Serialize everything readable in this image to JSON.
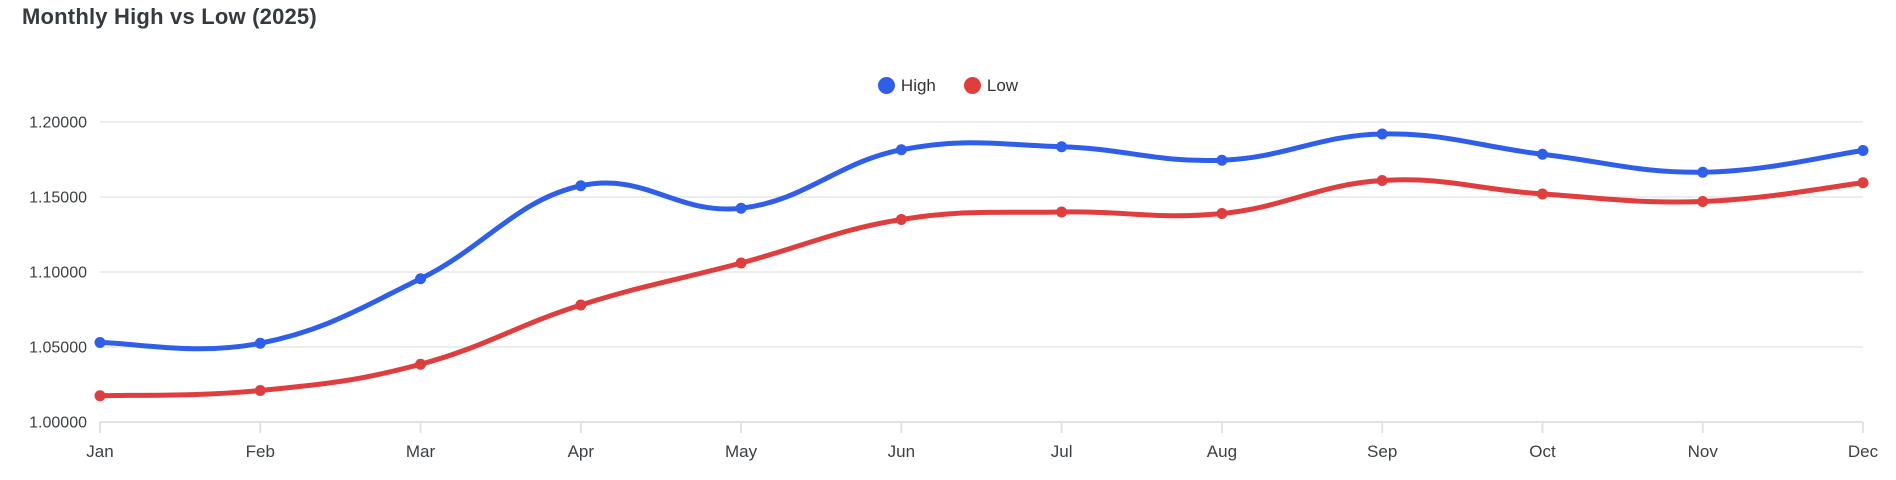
{
  "page": {
    "title": "Monthly High vs Low (2025)"
  },
  "chart_data": {
    "type": "line",
    "title": "Monthly High vs Low (2025)",
    "x": [
      "Jan",
      "Feb",
      "Mar",
      "Apr",
      "May",
      "Jun",
      "Jul",
      "Aug",
      "Sep",
      "Oct",
      "Nov",
      "Dec"
    ],
    "series": [
      {
        "name": "High",
        "color": "#2f5fe8",
        "values": [
          1.053,
          1.0525,
          1.0955,
          1.1575,
          1.1425,
          1.1815,
          1.1835,
          1.1745,
          1.192,
          1.1785,
          1.1665,
          1.181
        ]
      },
      {
        "name": "Low",
        "color": "#de3e3e",
        "values": [
          1.0175,
          1.021,
          1.0385,
          1.078,
          1.106,
          1.135,
          1.14,
          1.139,
          1.161,
          1.152,
          1.147,
          1.1595
        ]
      }
    ],
    "xlabel": "",
    "ylabel": "",
    "ylim": [
      1.0,
      1.2
    ],
    "ytick_step": 0.05,
    "ytick_decimals": 5,
    "ytick_labels": [
      "1.00000",
      "1.05000",
      "1.10000",
      "1.15000",
      "1.20000"
    ],
    "grid": true,
    "legend_position": "top-center",
    "smooth": true
  },
  "colors": {
    "background": "#ffffff",
    "title_text": "#343a40",
    "axis_text": "#3c4043",
    "gridline": "#e7e7e7",
    "axis_line": "#e2e2e2",
    "high_series": "#2f5fe8",
    "low_series": "#de3e3e"
  }
}
